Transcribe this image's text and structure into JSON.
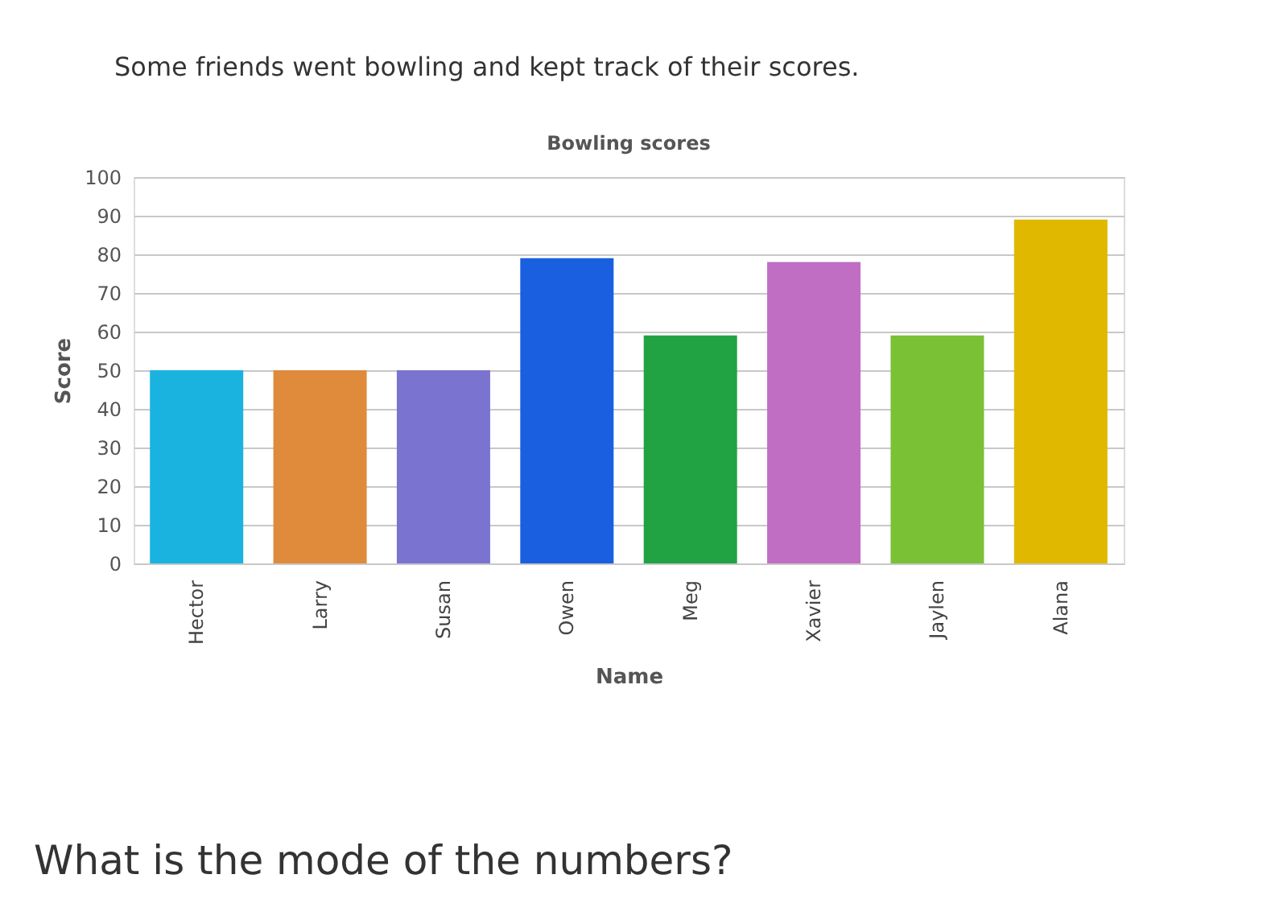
{
  "chart_data": {
    "type": "bar",
    "title": "Bowling scores",
    "xlabel": "Name",
    "ylabel": "Score",
    "categories": [
      "Hector",
      "Larry",
      "Susan",
      "Owen",
      "Meg",
      "Xavier",
      "Jaylen",
      "Alana"
    ],
    "values": [
      50,
      50,
      50,
      79,
      59,
      78,
      59,
      89
    ],
    "colors": [
      "#1ab3e0",
      "#e08a3c",
      "#7b73d0",
      "#1a5fe0",
      "#21a344",
      "#c06ec4",
      "#7ac136",
      "#e0b800"
    ],
    "ylim": [
      0,
      100
    ],
    "yticks": [
      0,
      10,
      20,
      30,
      40,
      50,
      60,
      70,
      80,
      90,
      100
    ],
    "grid": "y",
    "annotations": [
      "Some friends went bowling and kept track of their scores.",
      "What is the mode of the numbers?"
    ]
  }
}
